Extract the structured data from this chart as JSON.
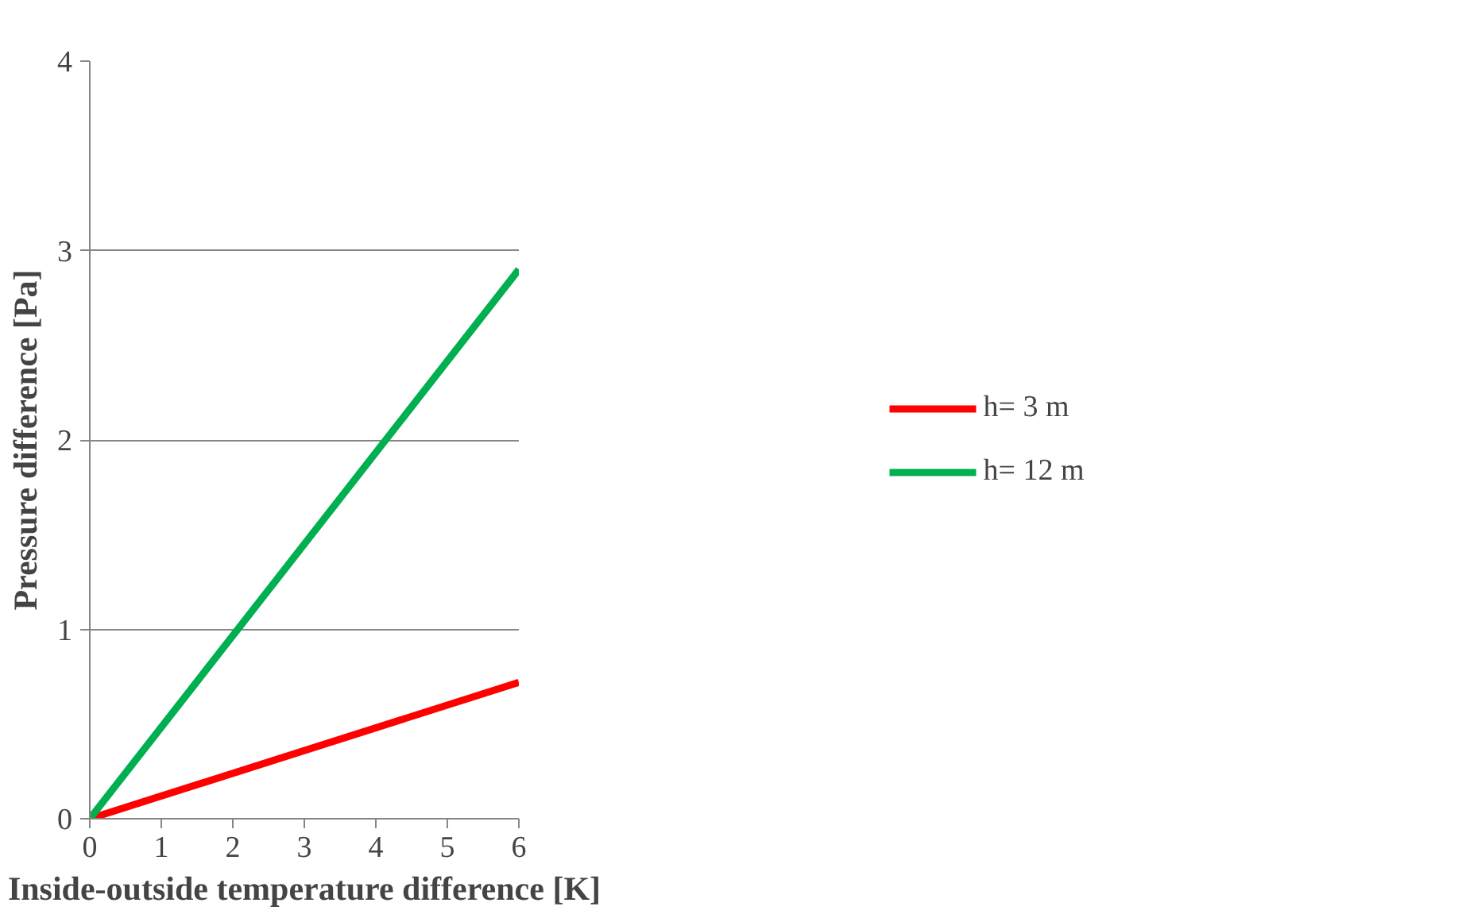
{
  "chart_data": {
    "type": "line",
    "xlabel": "Inside-outside temperature difference [K]",
    "ylabel": "Pressure difference [Pa]",
    "x": [
      0,
      6
    ],
    "series": [
      {
        "name": "h= 3 m",
        "color": "#ff0000",
        "values": [
          0,
          0.72
        ]
      },
      {
        "name": "h= 12 m",
        "color": "#00b050",
        "values": [
          0,
          2.9
        ]
      }
    ],
    "xlim": [
      0,
      6
    ],
    "ylim": [
      0,
      4
    ],
    "xticks": [
      0,
      1,
      2,
      3,
      4,
      5,
      6
    ],
    "yticks": [
      0,
      1,
      2,
      3,
      4
    ],
    "grid": "y",
    "legend": "right",
    "marker": "none",
    "line_style": "solid"
  }
}
